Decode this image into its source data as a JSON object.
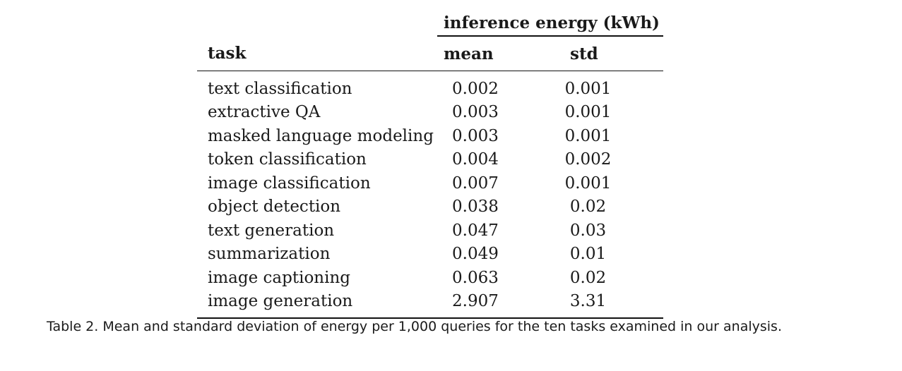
{
  "table": {
    "group_header": "inference energy (kWh)",
    "columns": [
      "task",
      "mean",
      "std"
    ],
    "rows": [
      {
        "task": "text classification",
        "mean": "0.002",
        "std": "0.001"
      },
      {
        "task": "extractive QA",
        "mean": "0.003",
        "std": "0.001"
      },
      {
        "task": "masked language modeling",
        "mean": "0.003",
        "std": "0.001"
      },
      {
        "task": "token classification",
        "mean": "0.004",
        "std": "0.002"
      },
      {
        "task": "image classification",
        "mean": "0.007",
        "std": "0.001"
      },
      {
        "task": "object detection",
        "mean": "0.038",
        "std": "0.02"
      },
      {
        "task": "text generation",
        "mean": "0.047",
        "std": "0.03"
      },
      {
        "task": "summarization",
        "mean": "0.049",
        "std": "0.01"
      },
      {
        "task": "image captioning",
        "mean": "0.063",
        "std": "0.02"
      },
      {
        "task": "image generation",
        "mean": "2.907",
        "std": "3.31"
      }
    ]
  },
  "caption": "Table 2.  Mean and standard deviation of energy per 1,000 queries for the ten tasks examined in our analysis."
}
